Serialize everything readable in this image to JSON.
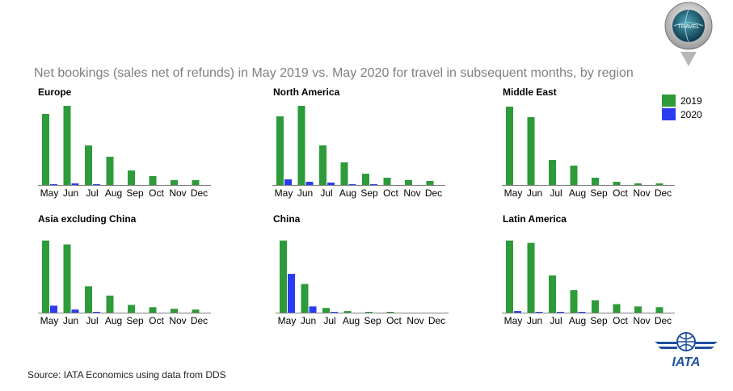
{
  "title": "Net bookings (sales net of refunds) in May 2019 vs. May 2020 for travel in subsequent months, by region",
  "source": "Source: IATA Economics using data from DDS",
  "badge_text": "TRAVEL",
  "logo_text": "IATA",
  "colors": {
    "series_2019": "#2e9b3a",
    "series_2020": "#2b3cf0",
    "axis": "#7f7f7f"
  },
  "legend": [
    {
      "name": "2019",
      "color": "#2e9b3a"
    },
    {
      "name": "2020",
      "color": "#2b3cf0"
    }
  ],
  "chart_data": [
    {
      "type": "bar",
      "title": "Europe",
      "categories": [
        "May",
        "Jun",
        "Jul",
        "Aug",
        "Sep",
        "Oct",
        "Nov",
        "Dec"
      ],
      "series": [
        {
          "name": "2019",
          "values": [
            88,
            98,
            49,
            35,
            18,
            11,
            6,
            6
          ]
        },
        {
          "name": "2020",
          "values": [
            1,
            2,
            1,
            0,
            0,
            0,
            0,
            0
          ]
        }
      ],
      "ylim": [
        0,
        100
      ]
    },
    {
      "type": "bar",
      "title": "North America",
      "categories": [
        "May",
        "Jun",
        "Jul",
        "Aug",
        "Sep",
        "Oct",
        "Nov",
        "Dec"
      ],
      "series": [
        {
          "name": "2019",
          "values": [
            85,
            98,
            49,
            28,
            14,
            9,
            6,
            5
          ]
        },
        {
          "name": "2020",
          "values": [
            7,
            4,
            3,
            1,
            1,
            0,
            0,
            0
          ]
        }
      ],
      "ylim": [
        0,
        100
      ]
    },
    {
      "type": "bar",
      "title": "Middle East",
      "categories": [
        "May",
        "Jun",
        "Jul",
        "Aug",
        "Sep",
        "Oct",
        "Nov",
        "Dec"
      ],
      "series": [
        {
          "name": "2019",
          "values": [
            97,
            84,
            31,
            24,
            9,
            4,
            2,
            2
          ]
        },
        {
          "name": "2020",
          "values": [
            0,
            0,
            0,
            0,
            0,
            0,
            0,
            0
          ]
        }
      ],
      "ylim": [
        0,
        100
      ]
    },
    {
      "type": "bar",
      "title": "Asia excluding China",
      "categories": [
        "May",
        "Jun",
        "Jul",
        "Aug",
        "Sep",
        "Oct",
        "Nov",
        "Dec"
      ],
      "series": [
        {
          "name": "2019",
          "values": [
            93,
            88,
            34,
            22,
            10,
            7,
            5,
            4
          ]
        },
        {
          "name": "2020",
          "values": [
            9,
            4,
            1,
            0,
            0,
            0,
            0,
            0
          ]
        }
      ],
      "ylim": [
        0,
        100
      ]
    },
    {
      "type": "bar",
      "title": "China",
      "categories": [
        "May",
        "Jun",
        "Jul",
        "Aug",
        "Sep",
        "Oct",
        "Nov",
        "Dec"
      ],
      "series": [
        {
          "name": "2019",
          "values": [
            93,
            37,
            6,
            2,
            1,
            1,
            0,
            0
          ]
        },
        {
          "name": "2020",
          "values": [
            50,
            8,
            1,
            0,
            0,
            0,
            0,
            0
          ]
        }
      ],
      "ylim": [
        0,
        100
      ]
    },
    {
      "type": "bar",
      "title": "Latin America",
      "categories": [
        "May",
        "Jun",
        "Jul",
        "Aug",
        "Sep",
        "Oct",
        "Nov",
        "Dec"
      ],
      "series": [
        {
          "name": "2019",
          "values": [
            93,
            90,
            48,
            29,
            16,
            11,
            8,
            7
          ]
        },
        {
          "name": "2020",
          "values": [
            2,
            1,
            1,
            1,
            0,
            0,
            0,
            0
          ]
        }
      ],
      "ylim": [
        0,
        100
      ]
    }
  ]
}
